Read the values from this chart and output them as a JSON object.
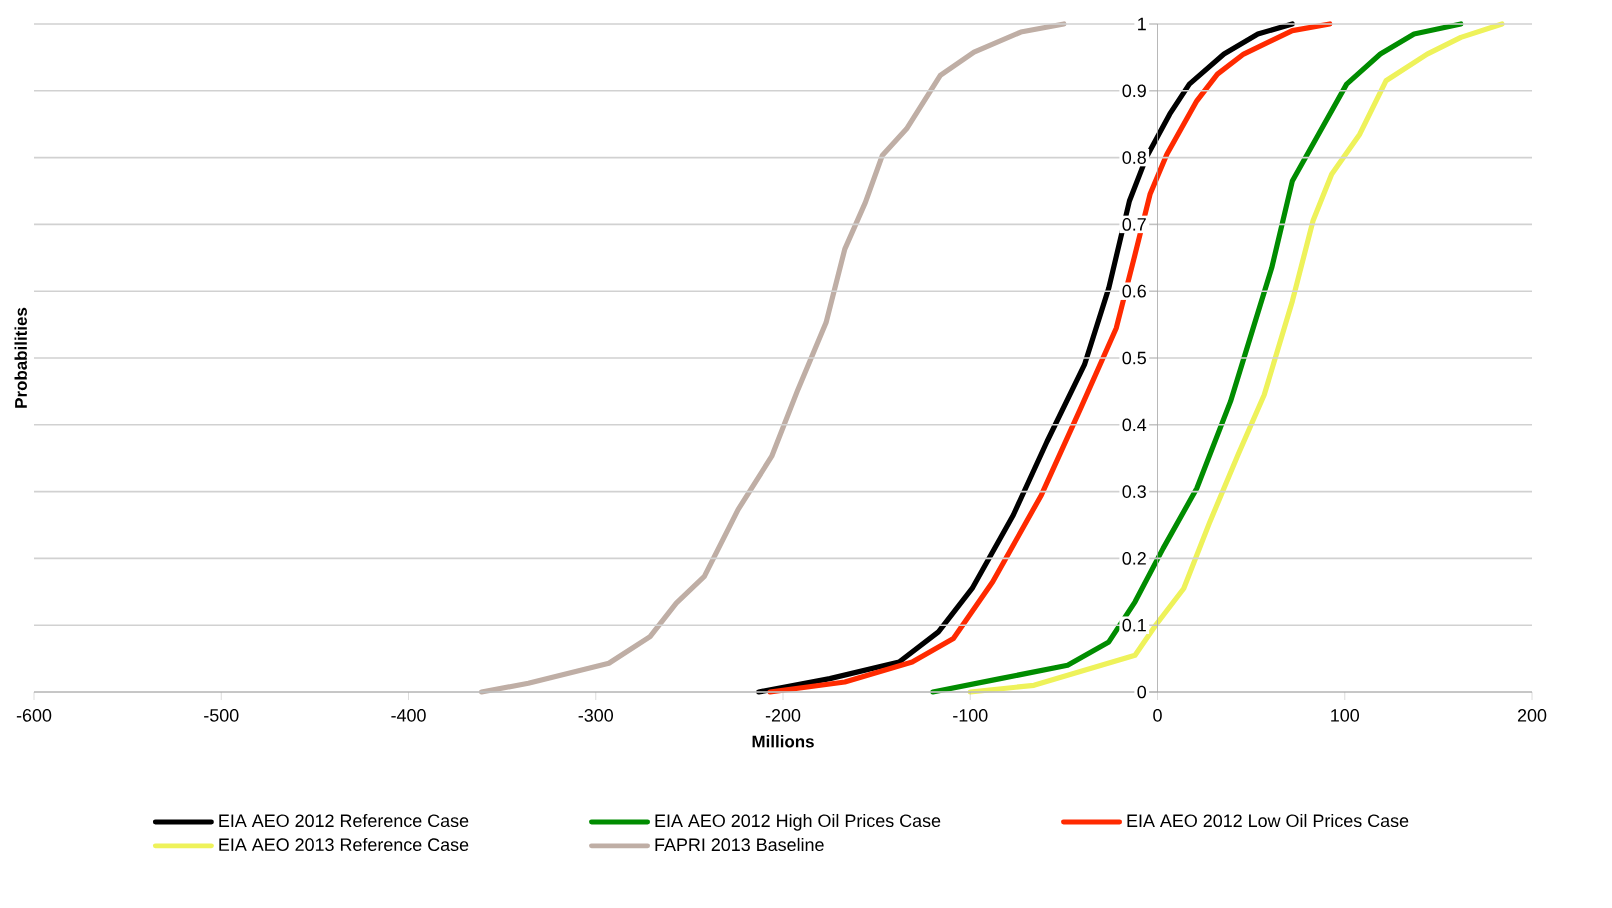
{
  "chart_data": {
    "type": "line",
    "xlabel": "Millions",
    "ylabel": "Probabilities",
    "xlim": [
      -600,
      200
    ],
    "xticks": [
      -600,
      -500,
      -400,
      -300,
      -200,
      -100,
      0,
      100,
      200
    ],
    "ylim": [
      0,
      1
    ],
    "yticks": [
      0,
      0.1,
      0.2,
      0.3,
      0.4,
      0.5,
      0.6,
      0.7,
      0.8,
      0.9,
      1
    ],
    "grid": "y",
    "legend": "bottom",
    "marker": "none",
    "line_style": "solid",
    "series": [
      {
        "name": "EIA AEO 2012 Reference Case",
        "color": "#000000",
        "x": [
          -213,
          -175,
          -138,
          -117,
          -99,
          -77,
          -59,
          -39,
          -26,
          -15,
          -6,
          6.5,
          17,
          35.5,
          53.6,
          72
        ],
        "values": [
          0,
          0.02,
          0.045,
          0.09,
          0.155,
          0.265,
          0.375,
          0.49,
          0.605,
          0.735,
          0.8,
          0.865,
          0.91,
          0.955,
          0.985,
          1
        ]
      },
      {
        "name": "EIA AEO 2012 High Oil Prices Case",
        "color": "#008c00",
        "x": [
          -120,
          -84,
          -48,
          -26,
          -12,
          3,
          21,
          39,
          50,
          61,
          72,
          86,
          101,
          119,
          137,
          162
        ],
        "values": [
          0,
          0.02,
          0.04,
          0.075,
          0.135,
          0.215,
          0.305,
          0.435,
          0.535,
          0.635,
          0.765,
          0.835,
          0.91,
          0.955,
          0.985,
          1
        ]
      },
      {
        "name": "EIA AEO 2012 Low Oil Prices Case",
        "color": "#ff2a00",
        "x": [
          -207,
          -167,
          -131,
          -109,
          -88,
          -62,
          -41,
          -22,
          -12,
          -4,
          5,
          21,
          32,
          46,
          72,
          92
        ],
        "values": [
          0,
          0.015,
          0.045,
          0.08,
          0.165,
          0.295,
          0.425,
          0.545,
          0.655,
          0.745,
          0.805,
          0.885,
          0.925,
          0.955,
          0.99,
          1
        ]
      },
      {
        "name": "EIA AEO 2013 Reference Case",
        "color": "#eef25a",
        "x": [
          -100,
          -66,
          -30,
          -12,
          -1,
          14,
          28,
          43,
          57,
          72,
          83,
          93,
          108,
          122,
          144,
          162,
          184
        ],
        "values": [
          0,
          0.01,
          0.04,
          0.055,
          0.1,
          0.155,
          0.255,
          0.355,
          0.445,
          0.585,
          0.705,
          0.775,
          0.835,
          0.915,
          0.955,
          0.98,
          1
        ]
      },
      {
        "name": "FAPRI 2013 Baseline",
        "color": "#bfaea5",
        "x": [
          -361,
          -336,
          -293,
          -271,
          -257,
          -242,
          -224,
          -206,
          -192,
          -177,
          -167,
          -156,
          -147,
          -134,
          -116,
          -98,
          -73,
          -50
        ],
        "values": [
          0,
          0.013,
          0.043,
          0.083,
          0.133,
          0.173,
          0.273,
          0.353,
          0.453,
          0.553,
          0.663,
          0.733,
          0.803,
          0.843,
          0.923,
          0.958,
          0.988,
          1
        ]
      }
    ]
  }
}
